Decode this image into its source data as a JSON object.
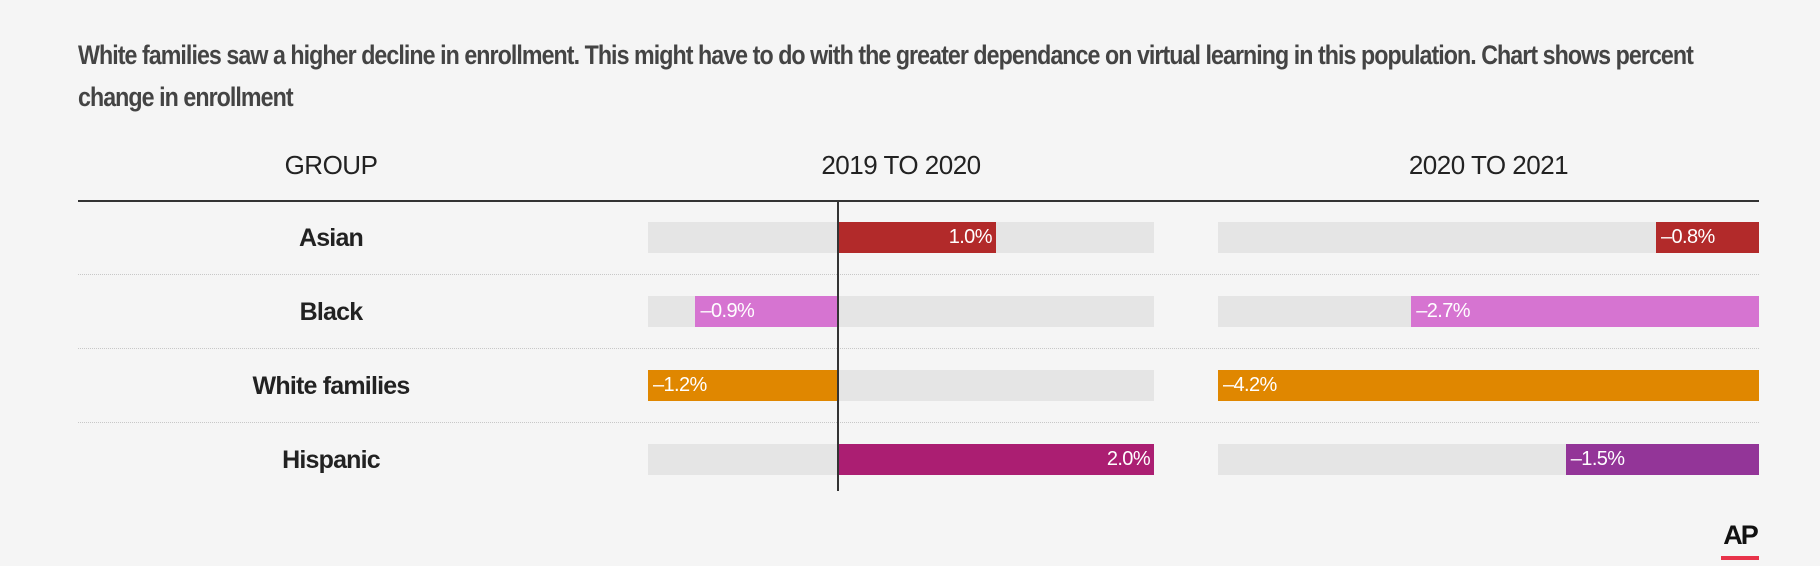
{
  "chart_data": {
    "type": "bar",
    "title": "White families saw a higher decline in enrollment. This might have to do with the greater dependance on virtual learning in this population. Chart shows percent change in enrollment",
    "header_group": "GROUP",
    "categories": [
      "Asian",
      "Black",
      "White families",
      "Hispanic"
    ],
    "series": [
      {
        "header": "2019 TO 2020",
        "domain": [
          -1.2,
          2.0
        ],
        "values": [
          1.0,
          -0.9,
          -1.2,
          2.0
        ],
        "labels": [
          "1.0%",
          "–0.9%",
          "–1.2%",
          "2.0%"
        ],
        "colors": [
          "#b22a2a",
          "#d674d1",
          "#e08700",
          "#ab1e72"
        ]
      },
      {
        "header": "2020 TO 2021",
        "domain": [
          -4.2,
          0
        ],
        "values": [
          -0.8,
          -2.7,
          -4.2,
          -1.5
        ],
        "labels": [
          "–0.8%",
          "–2.7%",
          "–4.2%",
          "–1.5%"
        ],
        "colors": [
          "#b22a2a",
          "#d674d1",
          "#e08700",
          "#933598"
        ]
      }
    ]
  },
  "logo": {
    "text": "AP",
    "accent": "#e8334a"
  }
}
